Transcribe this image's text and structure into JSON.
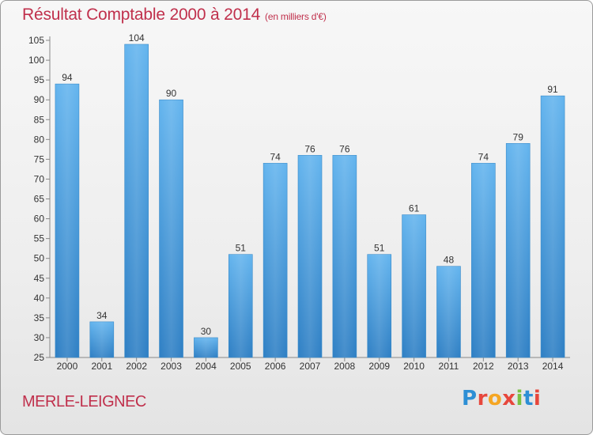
{
  "header": {
    "title": "Résultat Comptable 2000 à 2014",
    "subtitle": "(en milliers d'€)"
  },
  "footer": {
    "town": "MERLE-LEIGNEC",
    "logo_letters": [
      {
        "ch": "P",
        "color": "#2d8fd5"
      },
      {
        "ch": "r",
        "color": "#e7473c"
      },
      {
        "ch": "o",
        "color": "#f5a623"
      },
      {
        "ch": "x",
        "color": "#e7473c"
      },
      {
        "ch": "i",
        "color": "#7ac142"
      },
      {
        "ch": "t",
        "color": "#2d8fd5"
      },
      {
        "ch": "i",
        "color": "#e7473c"
      }
    ]
  },
  "chart_data": {
    "type": "bar",
    "categories": [
      "2000",
      "2001",
      "2002",
      "2003",
      "2004",
      "2005",
      "2006",
      "2007",
      "2008",
      "2009",
      "2010",
      "2011",
      "2012",
      "2013",
      "2014"
    ],
    "values": [
      94,
      34,
      104,
      90,
      30,
      51,
      74,
      76,
      76,
      51,
      61,
      48,
      74,
      79,
      91
    ],
    "ylim": [
      25,
      105
    ],
    "yticks": [
      25,
      30,
      35,
      40,
      45,
      50,
      55,
      60,
      65,
      70,
      75,
      80,
      85,
      90,
      95,
      100,
      105
    ],
    "grid": false,
    "bar_color": "#4a9fdc",
    "axis_color": "#888888",
    "label_color": "#333333"
  }
}
